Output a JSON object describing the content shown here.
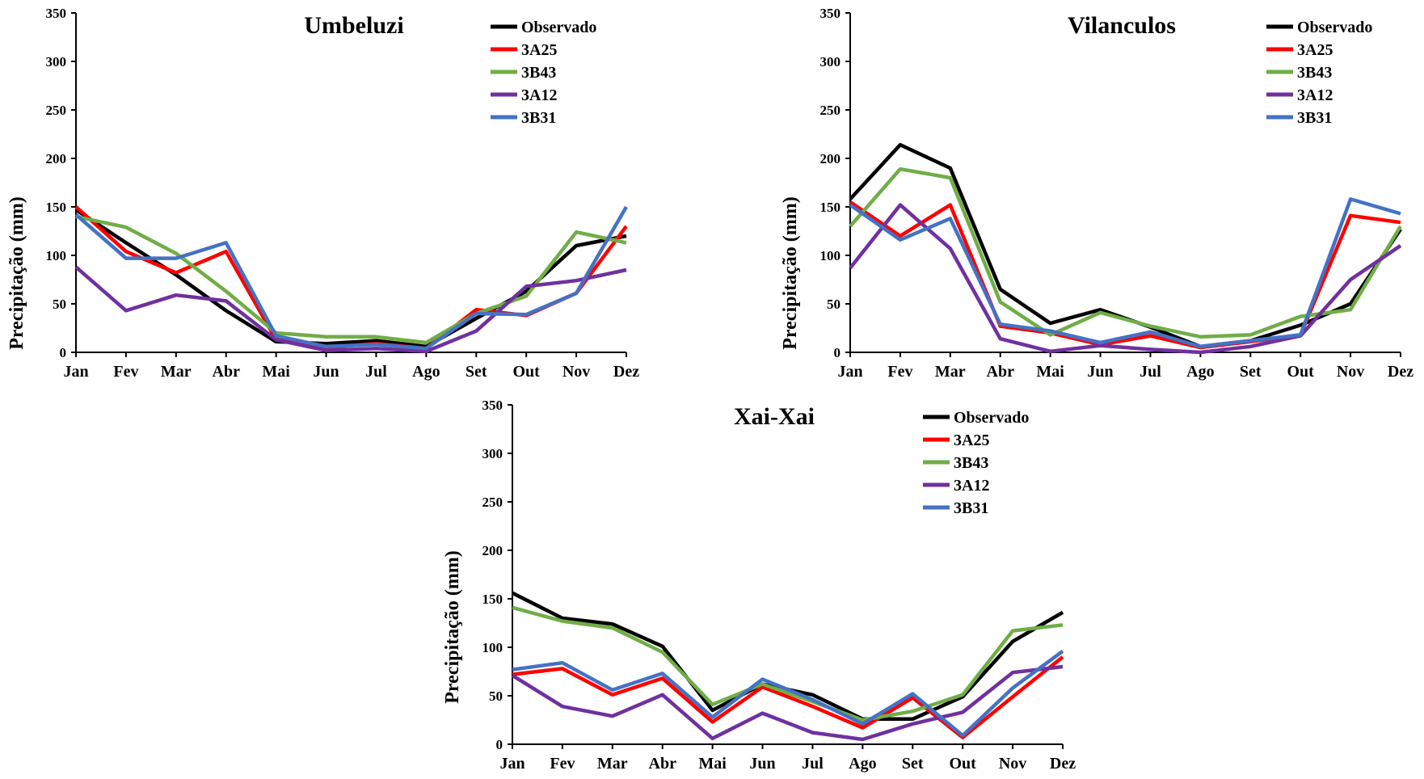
{
  "chart_data": [
    {
      "type": "line",
      "title": "Umbeluzi",
      "ylabel": "Precipitação (mm)",
      "xlabel": "",
      "categories": [
        "Jan",
        "Fev",
        "Mar",
        "Abr",
        "Mai",
        "Jun",
        "Jul",
        "Ago",
        "Set",
        "Out",
        "Nov",
        "Dez"
      ],
      "ylim": [
        0,
        350
      ],
      "yticks": [
        0,
        50,
        100,
        150,
        200,
        250,
        300,
        350
      ],
      "grid": false,
      "legend_position": "top-right",
      "series": [
        {
          "name": "Observado",
          "color": "#000000",
          "values": [
            147,
            113,
            80,
            43,
            11,
            9,
            12,
            6,
            35,
            63,
            110,
            120
          ]
        },
        {
          "name": "3A25",
          "color": "#ff0000",
          "values": [
            150,
            104,
            82,
            104,
            13,
            5,
            9,
            4,
            44,
            38,
            61,
            130
          ]
        },
        {
          "name": "3B43",
          "color": "#70ad47",
          "values": [
            140,
            129,
            102,
            63,
            20,
            16,
            16,
            10,
            40,
            58,
            124,
            113
          ]
        },
        {
          "name": "3A12",
          "color": "#7030a0",
          "values": [
            88,
            43,
            59,
            53,
            13,
            2,
            4,
            1,
            22,
            68,
            74,
            85
          ]
        },
        {
          "name": "3B31",
          "color": "#4472c4",
          "values": [
            142,
            97,
            97,
            113,
            17,
            6,
            8,
            4,
            40,
            39,
            61,
            150
          ]
        }
      ]
    },
    {
      "type": "line",
      "title": "Vilanculos",
      "ylabel": "Precipitação (mm)",
      "xlabel": "",
      "categories": [
        "Jan",
        "Fev",
        "Mar",
        "Abr",
        "Mai",
        "Jun",
        "Jul",
        "Ago",
        "Set",
        "Out",
        "Nov",
        "Dez"
      ],
      "ylim": [
        0,
        350
      ],
      "yticks": [
        0,
        50,
        100,
        150,
        200,
        250,
        300,
        350
      ],
      "grid": false,
      "legend_position": "top-right",
      "series": [
        {
          "name": "Observado",
          "color": "#000000",
          "values": [
            158,
            214,
            190,
            65,
            30,
            44,
            26,
            6,
            12,
            28,
            50,
            127
          ]
        },
        {
          "name": "3A25",
          "color": "#ff0000",
          "values": [
            155,
            120,
            152,
            27,
            20,
            8,
            17,
            5,
            11,
            18,
            141,
            134
          ]
        },
        {
          "name": "3B43",
          "color": "#70ad47",
          "values": [
            130,
            189,
            180,
            52,
            18,
            41,
            27,
            16,
            18,
            37,
            44,
            130
          ]
        },
        {
          "name": "3A12",
          "color": "#7030a0",
          "values": [
            87,
            152,
            107,
            14,
            1,
            7,
            3,
            0,
            6,
            17,
            75,
            110
          ]
        },
        {
          "name": "3B31",
          "color": "#4472c4",
          "values": [
            152,
            116,
            138,
            29,
            22,
            10,
            21,
            6,
            12,
            18,
            158,
            143
          ]
        }
      ]
    },
    {
      "type": "line",
      "title": "Xai-Xai",
      "ylabel": "Precipitação (mm)",
      "xlabel": "",
      "categories": [
        "Jan",
        "Fev",
        "Mar",
        "Abr",
        "Mai",
        "Jun",
        "Jul",
        "Ago",
        "Set",
        "Out",
        "Nov",
        "Dez"
      ],
      "ylim": [
        0,
        350
      ],
      "yticks": [
        0,
        50,
        100,
        150,
        200,
        250,
        300,
        350
      ],
      "grid": false,
      "legend_position": "top-right",
      "series": [
        {
          "name": "Observado",
          "color": "#000000",
          "values": [
            156,
            130,
            124,
            101,
            35,
            62,
            51,
            26,
            26,
            49,
            106,
            136
          ]
        },
        {
          "name": "3A25",
          "color": "#ff0000",
          "values": [
            72,
            78,
            51,
            68,
            23,
            59,
            39,
            17,
            48,
            7,
            49,
            90
          ]
        },
        {
          "name": "3B43",
          "color": "#70ad47",
          "values": [
            141,
            127,
            120,
            95,
            41,
            62,
            44,
            25,
            34,
            51,
            117,
            123
          ]
        },
        {
          "name": "3A12",
          "color": "#7030a0",
          "values": [
            71,
            39,
            29,
            51,
            6,
            32,
            12,
            5,
            21,
            33,
            74,
            80
          ]
        },
        {
          "name": "3B31",
          "color": "#4472c4",
          "values": [
            77,
            84,
            56,
            73,
            28,
            67,
            46,
            21,
            52,
            9,
            58,
            96
          ]
        }
      ]
    }
  ]
}
